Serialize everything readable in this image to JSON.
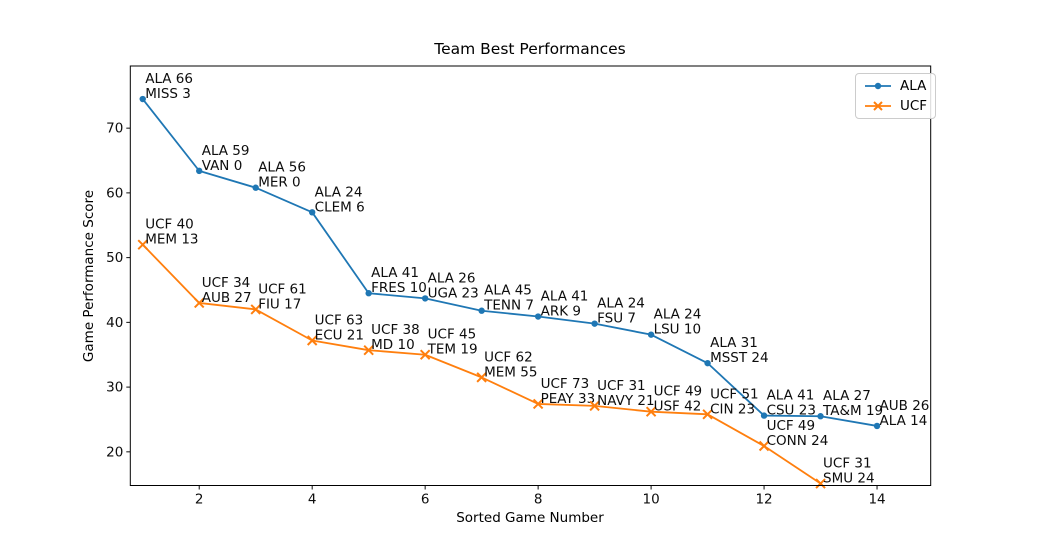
{
  "chart_data": {
    "type": "line",
    "title": "Team Best Performances",
    "xlabel": "Sorted Game Number",
    "ylabel": "Game Performance Score",
    "xlim": [
      0.78,
      14.95
    ],
    "ylim": [
      14.8,
      79.6
    ],
    "xticks": [
      2,
      4,
      6,
      8,
      10,
      12,
      14
    ],
    "yticks": [
      20,
      30,
      40,
      50,
      60,
      70
    ],
    "grid": false,
    "legend_position": "upper right",
    "series": [
      {
        "name": "ALA",
        "color": "#1f77b4",
        "marker": "circle",
        "x": [
          1,
          2,
          3,
          4,
          5,
          6,
          7,
          8,
          9,
          10,
          11,
          12,
          13,
          14
        ],
        "values": [
          74.5,
          63.4,
          60.8,
          57.0,
          44.5,
          43.7,
          41.8,
          40.9,
          39.8,
          38.1,
          33.7,
          25.6,
          25.5,
          24.0
        ],
        "annotations": [
          [
            "ALA 66",
            "MISS 3"
          ],
          [
            "ALA 59",
            "VAN 0"
          ],
          [
            "ALA 56",
            "MER 0"
          ],
          [
            "ALA 24",
            "CLEM 6"
          ],
          [
            "ALA 41",
            "FRES 10"
          ],
          [
            "ALA 26",
            "UGA 23"
          ],
          [
            "ALA 45",
            "TENN 7"
          ],
          [
            "ALA 41",
            "ARK 9"
          ],
          [
            "ALA 24",
            "FSU 7"
          ],
          [
            "ALA 24",
            "LSU 10"
          ],
          [
            "ALA 31",
            "MSST 24"
          ],
          [
            "ALA 41",
            "CSU 23"
          ],
          [
            "ALA 27",
            "TA&M 19"
          ],
          [
            "AUB 26",
            "ALA 14"
          ]
        ]
      },
      {
        "name": "UCF",
        "color": "#ff7f0e",
        "marker": "x",
        "x": [
          1,
          2,
          3,
          4,
          5,
          6,
          7,
          8,
          9,
          10,
          11,
          12,
          13
        ],
        "values": [
          52.0,
          43.0,
          42.0,
          37.2,
          35.7,
          35.0,
          31.5,
          27.4,
          27.1,
          26.2,
          25.8,
          20.9,
          15.1
        ],
        "annotations": [
          [
            "UCF 40",
            "MEM 13"
          ],
          [
            "UCF 34",
            "AUB 27"
          ],
          [
            "UCF 61",
            "FIU 17"
          ],
          [
            "UCF 63",
            "ECU 21"
          ],
          [
            "UCF 38",
            "MD 10"
          ],
          [
            "UCF 45",
            "TEM 19"
          ],
          [
            "UCF 62",
            "MEM 55"
          ],
          [
            "UCF 73",
            "PEAY 33"
          ],
          [
            "UCF 31",
            "NAVY 21"
          ],
          [
            "UCF 49",
            "USF 42"
          ],
          [
            "UCF 51",
            "CIN 23"
          ],
          [
            "UCF 49",
            "CONN 24"
          ],
          [
            "UCF 31",
            "SMU 24"
          ]
        ]
      }
    ]
  }
}
